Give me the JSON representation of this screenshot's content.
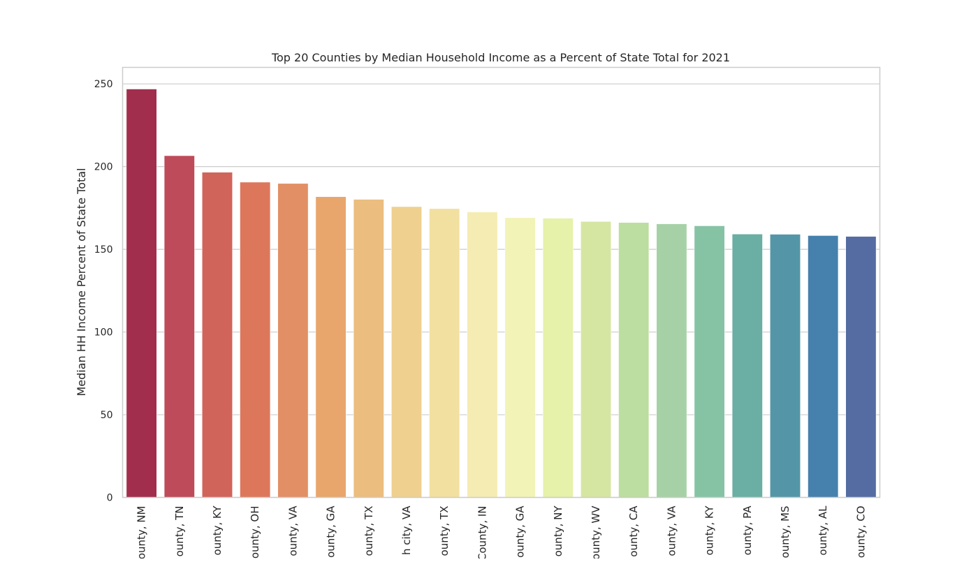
{
  "chart_data": {
    "type": "bar",
    "title": "Top 20 Counties by Median Household Income as a Percent of State Total for 2021",
    "xlabel": "",
    "ylabel": "Median HH Income Percent of State Total",
    "ylim": [
      0,
      260
    ],
    "yticks": [
      0,
      50,
      100,
      150,
      200,
      250
    ],
    "ytick_labels": [
      "0",
      "50",
      "100",
      "150",
      "200",
      "250"
    ],
    "grid": "horizontal",
    "legend": "none",
    "categories": [
      "ounty, NM",
      "ounty, TN",
      "ounty, KY",
      "ounty, OH",
      "ounty, VA",
      "ounty, GA",
      "ounty, TX",
      "h city, VA",
      "ounty, TX",
      "County, IN",
      "ounty, GA",
      "ounty, NY",
      "ounty, WV",
      "ounty, CA",
      "ounty, VA",
      "ounty, KY",
      "ounty, PA",
      "ounty, MS",
      "ounty, AL",
      "ounty, CO"
    ],
    "values": [
      246.9,
      206.6,
      196.6,
      190.6,
      189.8,
      181.8,
      180.2,
      175.8,
      174.6,
      172.6,
      169.1,
      168.8,
      166.8,
      166.2,
      165.4,
      164.2,
      159.2,
      159.1,
      158.3,
      157.8
    ],
    "colors": [
      "#a22e4d",
      "#be4b5a",
      "#d0645b",
      "#dd775c",
      "#e28f65",
      "#e8a66c",
      "#ebbd7e",
      "#efd08f",
      "#f2e0a0",
      "#f5ecb3",
      "#f2f3b7",
      "#e6f1a9",
      "#d5e6a3",
      "#bcdea0",
      "#a6d1a6",
      "#86c3a5",
      "#6aaea4",
      "#5496a7",
      "#4680ad",
      "#546ca2"
    ]
  }
}
